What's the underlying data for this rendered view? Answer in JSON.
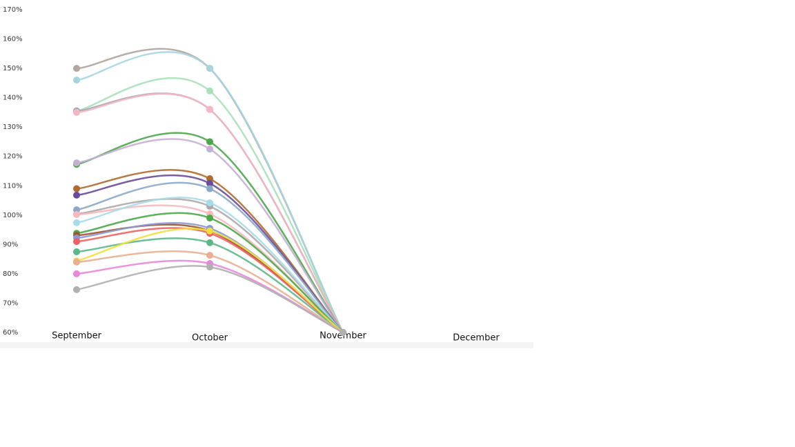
{
  "chart_data": {
    "type": "line",
    "categories": [
      "September",
      "October",
      "November",
      "December"
    ],
    "ylim": [
      60,
      170
    ],
    "yticks": [
      {
        "value": 60,
        "label": "60%"
      },
      {
        "value": 70,
        "label": "70%"
      },
      {
        "value": 80,
        "label": "80%"
      },
      {
        "value": 90,
        "label": "90%"
      },
      {
        "value": 100,
        "label": "100%"
      },
      {
        "value": 110,
        "label": "110%"
      },
      {
        "value": 120,
        "label": "120%"
      },
      {
        "value": 130,
        "label": "130%"
      },
      {
        "value": 140,
        "label": "140%"
      },
      {
        "value": 150,
        "label": "150%"
      },
      {
        "value": 160,
        "label": "160%"
      },
      {
        "value": 170,
        "label": "170%"
      }
    ],
    "smooth": true,
    "series": [
      {
        "color": "#b0a5a0",
        "values": [
          150,
          150,
          60,
          null
        ]
      },
      {
        "color": "#a6d5e0",
        "values": [
          146,
          150,
          60,
          null
        ]
      },
      {
        "color": "#a8e0b8",
        "values": [
          135.5,
          142.3,
          60,
          null
        ]
      },
      {
        "color": "#a0a8b0",
        "values": [
          135.5,
          136,
          60,
          null
        ]
      },
      {
        "color": "#f4b6c2",
        "values": [
          135,
          136,
          60,
          null
        ]
      },
      {
        "color": "#4ca64c",
        "values": [
          117.3,
          125,
          60,
          null
        ]
      },
      {
        "color": "#c5b0d5",
        "values": [
          117.8,
          122.5,
          60,
          null
        ]
      },
      {
        "color": "#b06a30",
        "values": [
          109,
          112.4,
          60,
          null
        ]
      },
      {
        "color": "#6a4c9c",
        "values": [
          106.8,
          110.8,
          60,
          null
        ]
      },
      {
        "color": "#8aa8c8",
        "values": [
          101.8,
          109,
          60,
          null
        ]
      },
      {
        "color": "#b0a8a8",
        "values": [
          100.4,
          103,
          60,
          null
        ]
      },
      {
        "color": "#f8b8c0",
        "values": [
          100.2,
          100.4,
          60,
          null
        ]
      },
      {
        "color": "#a8dce8",
        "values": [
          97.4,
          104.2,
          60,
          null
        ]
      },
      {
        "color": "#4aaa48",
        "values": [
          93.8,
          99,
          60,
          null
        ]
      },
      {
        "color": "#a0522d",
        "values": [
          93.1,
          94.6,
          60,
          null
        ]
      },
      {
        "color": "#8a9ad0",
        "values": [
          92.2,
          95.5,
          60,
          null
        ]
      },
      {
        "color": "#f06060",
        "values": [
          91,
          93.8,
          60,
          null
        ]
      },
      {
        "color": "#5cb888",
        "values": [
          87.5,
          90.6,
          60,
          null
        ]
      },
      {
        "color": "#f0e040",
        "values": [
          84.4,
          94.6,
          60,
          null
        ]
      },
      {
        "color": "#e8b090",
        "values": [
          84,
          86.3,
          60,
          null
        ]
      },
      {
        "color": "#e888d8",
        "values": [
          80,
          83.5,
          60,
          null
        ]
      },
      {
        "color": "#b0b0b0",
        "values": [
          74.6,
          82.3,
          60,
          null
        ]
      }
    ]
  }
}
